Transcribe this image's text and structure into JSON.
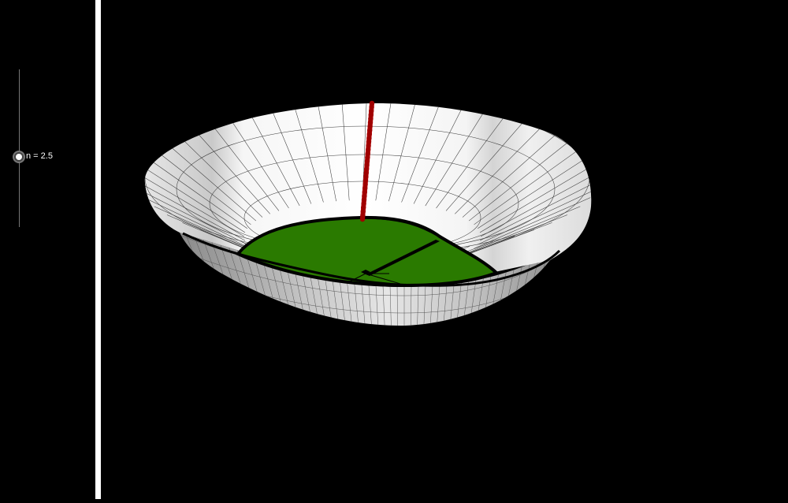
{
  "slider": {
    "label": "n = 2.5",
    "variable": "n",
    "value": 2.5
  },
  "colors": {
    "background": "#000000",
    "divider": "#ffffff",
    "surface": "#f2f2f2",
    "surface_shadow": "#9a9a9a",
    "floor": "#2a7a00",
    "curve": "#c00000",
    "rim": "#000000"
  },
  "graphics3d": {
    "surface_icon": "bowl-surface-icon",
    "floor_icon": "green-base-region-icon",
    "curve_icon": "red-vertical-curve-icon"
  }
}
